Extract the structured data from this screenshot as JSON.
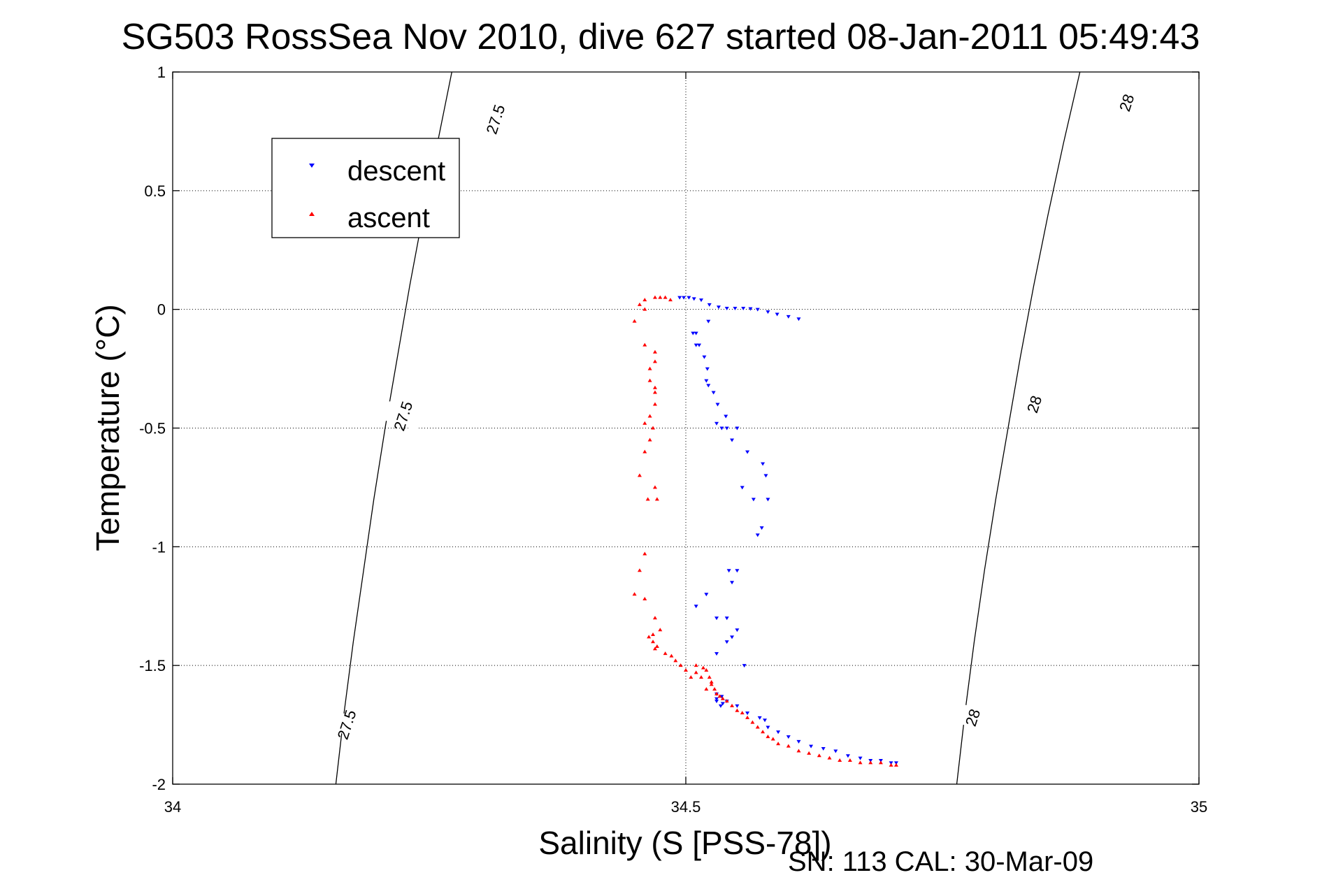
{
  "chart_data": {
    "type": "scatter",
    "title": "SG503 RossSea Nov 2010, dive 627 started 08-Jan-2011 05:49:43",
    "xlabel": "Salinity (S [PSS-78])",
    "ylabel": "Temperature (°C)",
    "footer": "SN: 113  CAL: 30-Mar-09",
    "xlim": [
      34,
      35
    ],
    "ylim": [
      -2,
      1
    ],
    "xticks": [
      34,
      34.5,
      35
    ],
    "xtick_labels": [
      "34",
      "34.5",
      "35"
    ],
    "yticks": [
      -2,
      -1.5,
      -1,
      -0.5,
      0,
      0.5,
      1
    ],
    "ytick_labels": [
      "-2",
      "-1.5",
      "-1",
      "-0.5",
      "0",
      "0.5",
      "1"
    ],
    "grid": true,
    "legend_position": "top-left",
    "series": [
      {
        "name": "descent",
        "color": "#0000ff",
        "marker": "triangle-down",
        "x": [
          34.494,
          34.498,
          34.503,
          34.508,
          34.515,
          34.523,
          34.532,
          34.54,
          34.548,
          34.556,
          34.563,
          34.57,
          34.58,
          34.589,
          34.6,
          34.61,
          34.522,
          34.51,
          34.507,
          34.51,
          34.513,
          34.518,
          34.521,
          34.52,
          34.522,
          34.527,
          34.531,
          34.539,
          34.53,
          34.535,
          34.54,
          34.545,
          34.55,
          34.56,
          34.575,
          34.578,
          34.555,
          34.566,
          34.58,
          34.574,
          34.57,
          34.55,
          34.542,
          34.545,
          34.52,
          34.51,
          34.53,
          34.54,
          34.55,
          34.545,
          34.54,
          34.53,
          34.557,
          34.53,
          34.53,
          34.536,
          34.534,
          34.55,
          34.56,
          34.572,
          34.577,
          34.58,
          34.59,
          34.6,
          34.61,
          34.622,
          34.634,
          34.646,
          34.658,
          34.67,
          34.68,
          34.69,
          34.7,
          34.705,
          34.53,
          34.535,
          34.54
        ],
        "y": [
          0.05,
          0.05,
          0.05,
          0.045,
          0.04,
          0.02,
          0.01,
          0.005,
          0.005,
          0.005,
          0.003,
          0.0,
          -0.01,
          -0.02,
          -0.03,
          -0.04,
          -0.05,
          -0.1,
          -0.1,
          -0.15,
          -0.15,
          -0.2,
          -0.25,
          -0.3,
          -0.32,
          -0.35,
          -0.4,
          -0.45,
          -0.48,
          -0.5,
          -0.5,
          -0.55,
          -0.5,
          -0.6,
          -0.65,
          -0.7,
          -0.75,
          -0.8,
          -0.8,
          -0.92,
          -0.95,
          -1.1,
          -1.1,
          -1.15,
          -1.2,
          -1.25,
          -1.3,
          -1.3,
          -1.35,
          -1.38,
          -1.4,
          -1.45,
          -1.5,
          -1.62,
          -1.65,
          -1.66,
          -1.67,
          -1.67,
          -1.7,
          -1.72,
          -1.73,
          -1.76,
          -1.78,
          -1.8,
          -1.82,
          -1.84,
          -1.85,
          -1.86,
          -1.88,
          -1.89,
          -1.9,
          -1.9,
          -1.91,
          -1.91,
          -1.64,
          -1.63,
          -1.65
        ]
      },
      {
        "name": "ascent",
        "color": "#ff0000",
        "marker": "triangle-up",
        "x": [
          34.47,
          34.475,
          34.48,
          34.485,
          34.46,
          34.46,
          34.455,
          34.45,
          34.46,
          34.47,
          34.47,
          34.465,
          34.465,
          34.47,
          34.47,
          34.47,
          34.465,
          34.46,
          34.468,
          34.465,
          34.46,
          34.455,
          34.47,
          34.472,
          34.463,
          34.46,
          34.455,
          34.45,
          34.46,
          34.47,
          34.475,
          34.468,
          34.464,
          34.468,
          34.472,
          34.47,
          34.48,
          34.486,
          34.49,
          34.495,
          34.5,
          34.505,
          34.51,
          34.517,
          34.52,
          34.523,
          34.525,
          34.528,
          34.53,
          34.533,
          34.536,
          34.54,
          34.545,
          34.55,
          34.555,
          34.56,
          34.565,
          34.57,
          34.575,
          34.58,
          34.585,
          34.59,
          34.6,
          34.61,
          34.62,
          34.63,
          34.64,
          34.65,
          34.66,
          34.67,
          34.68,
          34.69,
          34.7,
          34.705,
          34.51,
          34.515,
          34.52,
          34.525
        ],
        "y": [
          0.05,
          0.05,
          0.05,
          0.04,
          0.04,
          0.0,
          0.02,
          -0.05,
          -0.15,
          -0.18,
          -0.22,
          -0.25,
          -0.3,
          -0.33,
          -0.35,
          -0.4,
          -0.45,
          -0.48,
          -0.5,
          -0.55,
          -0.6,
          -0.7,
          -0.75,
          -0.8,
          -0.8,
          -1.03,
          -1.1,
          -1.2,
          -1.22,
          -1.3,
          -1.35,
          -1.37,
          -1.38,
          -1.4,
          -1.42,
          -1.43,
          -1.45,
          -1.46,
          -1.48,
          -1.5,
          -1.52,
          -1.55,
          -1.5,
          -1.51,
          -1.52,
          -1.55,
          -1.58,
          -1.6,
          -1.62,
          -1.63,
          -1.64,
          -1.65,
          -1.67,
          -1.69,
          -1.7,
          -1.72,
          -1.74,
          -1.76,
          -1.78,
          -1.8,
          -1.81,
          -1.83,
          -1.84,
          -1.86,
          -1.87,
          -1.88,
          -1.89,
          -1.9,
          -1.9,
          -1.91,
          -1.91,
          -1.91,
          -1.92,
          -1.92,
          -1.53,
          -1.55,
          -1.6,
          -1.57
        ]
      }
    ],
    "contours": [
      {
        "label": "27.5",
        "path": [
          [
            34.159,
            -2
          ],
          [
            34.167,
            -1.7
          ],
          [
            34.176,
            -1.4
          ],
          [
            34.186,
            -1.1
          ],
          [
            34.196,
            -0.8
          ],
          [
            34.207,
            -0.5
          ],
          [
            34.219,
            -0.2
          ],
          [
            34.231,
            0.1
          ],
          [
            34.244,
            0.4
          ],
          [
            34.258,
            0.7
          ],
          [
            34.272,
            1.0
          ]
        ],
        "label_points": [
          [
            34.17,
            -1.75
          ],
          [
            34.225,
            -0.45
          ],
          [
            34.315,
            0.8
          ]
        ]
      },
      {
        "label": "28",
        "path": [
          [
            34.764,
            -2
          ],
          [
            34.772,
            -1.7
          ],
          [
            34.781,
            -1.4
          ],
          [
            34.791,
            -1.1
          ],
          [
            34.802,
            -0.8
          ],
          [
            34.814,
            -0.5
          ],
          [
            34.826,
            -0.2
          ],
          [
            34.839,
            0.1
          ],
          [
            34.853,
            0.4
          ],
          [
            34.868,
            0.7
          ],
          [
            34.884,
            1.0
          ]
        ],
        "label_points": [
          [
            34.78,
            -1.72
          ],
          [
            34.84,
            -0.4
          ],
          [
            34.93,
            0.87
          ]
        ]
      }
    ]
  }
}
